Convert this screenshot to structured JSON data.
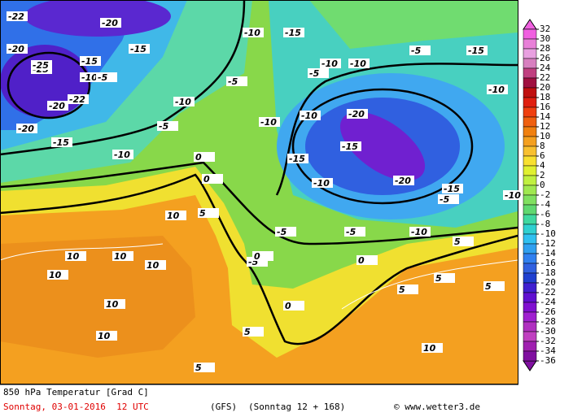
{
  "map": {
    "title": "850 hPa Temperatur [Grad C]",
    "date": "Sonntag, 03-01-2016  12 UTC",
    "model": "(GFS)",
    "run": "(Sonntag 12 + 168)",
    "credit": "© www.wetter3.de",
    "legend": {
      "ticks": [
        32,
        30,
        28,
        26,
        24,
        22,
        20,
        18,
        16,
        14,
        12,
        10,
        8,
        6,
        4,
        2,
        0,
        -2,
        -4,
        -6,
        -8,
        -10,
        -12,
        -14,
        -16,
        -18,
        -20,
        -22,
        -24,
        -26,
        -28,
        -30,
        -32,
        -34,
        -36
      ],
      "colors": [
        "#f060e0",
        "#e880d8",
        "#e8a0e0",
        "#d880c0",
        "#c04080",
        "#a01040",
        "#c01010",
        "#e02010",
        "#f04010",
        "#f06010",
        "#f08010",
        "#f4a020",
        "#f8c030",
        "#f8e030",
        "#e0f030",
        "#c0f040",
        "#a0e850",
        "#80e060",
        "#60d870",
        "#40d8a0",
        "#30d0d0",
        "#30c0f0",
        "#30a0f0",
        "#3080f0",
        "#3060e0",
        "#2040d0",
        "#4020d0",
        "#6010d0",
        "#8010d0",
        "#a020d0",
        "#b030c0",
        "#c040c0",
        "#a020b0",
        "#8010a0"
      ]
    },
    "contour_labels": [
      -22,
      -20,
      -20,
      -25,
      -15,
      -10,
      -5,
      -22,
      -25,
      -15,
      -10,
      -20,
      -20,
      -15,
      -10,
      -5,
      -10,
      0,
      -5,
      -10,
      -15,
      -5,
      -10,
      -5,
      -10,
      -15,
      -10,
      -5,
      -15,
      -10,
      -20,
      -20,
      -15,
      -10,
      -15,
      -10,
      -5,
      -10,
      -5,
      0,
      10,
      5,
      10,
      10,
      10,
      10,
      10,
      10,
      5,
      0,
      0,
      5,
      5,
      5,
      5,
      10,
      -5,
      0,
      5
    ]
  }
}
